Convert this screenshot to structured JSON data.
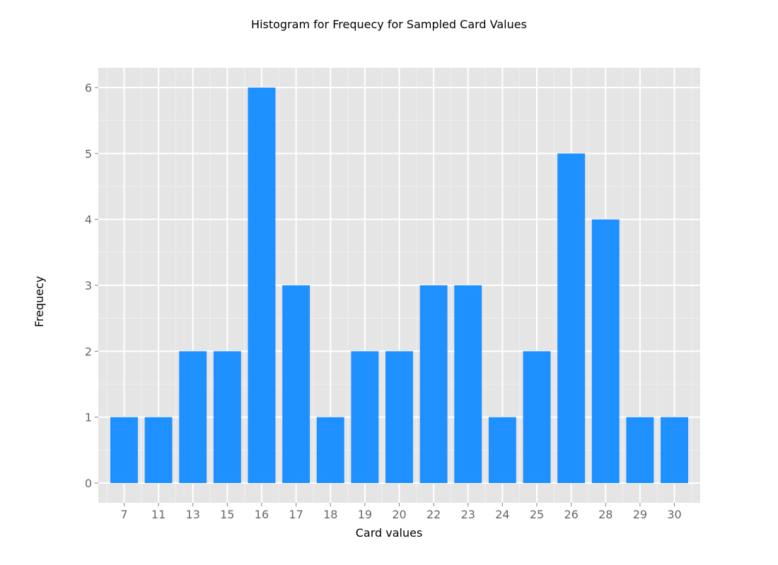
{
  "chart_data": {
    "type": "bar",
    "title": "Histogram for Frequecy for Sampled Card Values",
    "xlabel": "Card values",
    "ylabel": "Frequecy",
    "categories": [
      "7",
      "11",
      "13",
      "15",
      "16",
      "17",
      "18",
      "19",
      "20",
      "22",
      "23",
      "24",
      "25",
      "26",
      "28",
      "29",
      "30"
    ],
    "values": [
      1,
      1,
      2,
      2,
      6,
      3,
      1,
      2,
      2,
      3,
      3,
      1,
      2,
      5,
      4,
      1,
      1
    ],
    "ylim": [
      -0.3,
      6.3
    ],
    "yticks": [
      "0",
      "1",
      "2",
      "3",
      "4",
      "5",
      "6"
    ],
    "grid": true,
    "colors": {
      "bar": "#1e90ff",
      "panel": "#e5e5e5",
      "grid_major": "#ffffff",
      "grid_minor": "#f0f0f0"
    }
  }
}
